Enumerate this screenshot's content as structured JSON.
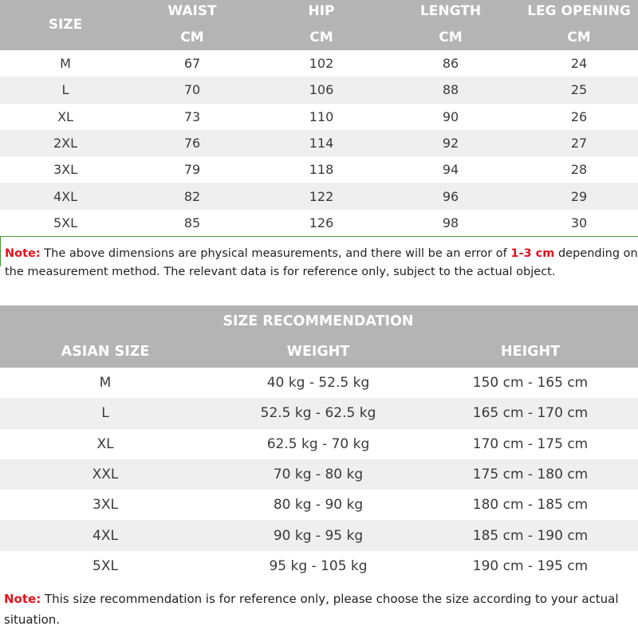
{
  "measurement_table": {
    "headers": {
      "size": "SIZE",
      "waist": "WAIST",
      "hip": "HIP",
      "length": "LENGTH",
      "leg_opening": "LEG OPENING",
      "unit": "CM"
    },
    "rows": [
      [
        "M",
        "67",
        "102",
        "86",
        "24"
      ],
      [
        "L",
        "70",
        "106",
        "88",
        "25"
      ],
      [
        "XL",
        "73",
        "110",
        "90",
        "26"
      ],
      [
        "2XL",
        "76",
        "114",
        "92",
        "27"
      ],
      [
        "3XL",
        "79",
        "118",
        "94",
        "28"
      ],
      [
        "4XL",
        "82",
        "122",
        "96",
        "29"
      ],
      [
        "5XL",
        "85",
        "126",
        "98",
        "30"
      ]
    ]
  },
  "note1": {
    "label": "Note:",
    "text_before": " The above dimensions are physical measurements, and there will be an error of ",
    "highlight": "1-3 cm",
    "text_after": " depending on the measurement method. The relevant data is for reference only, subject to the actual object."
  },
  "recommendation_table": {
    "title": "SIZE RECOMMENDATION",
    "headers": [
      "ASIAN SIZE",
      "WEIGHT",
      "HEIGHT"
    ],
    "rows": [
      [
        "M",
        "40 kg - 52.5 kg",
        "150 cm - 165 cm"
      ],
      [
        "L",
        "52.5 kg - 62.5 kg",
        "165 cm - 170 cm"
      ],
      [
        "XL",
        "62.5 kg - 70 kg",
        "170 cm - 175 cm"
      ],
      [
        "XXL",
        "70 kg - 80 kg",
        "175 cm - 180 cm"
      ],
      [
        "3XL",
        "80 kg - 90 kg",
        "180 cm - 185 cm"
      ],
      [
        "4XL",
        "90 kg - 95 kg",
        "185 cm - 190 cm"
      ],
      [
        "5XL",
        "95 kg - 105 kg",
        "190 cm - 195 cm"
      ]
    ]
  },
  "note2": {
    "label": "Note:",
    "text": " This size recommendation is for reference only, please choose the size according to your actual situation."
  },
  "colors": {
    "header_bg": "#b4b4b4",
    "alt_row": "#efefef",
    "note_red": "#e0141e",
    "border_green": "#4a9a3a"
  }
}
